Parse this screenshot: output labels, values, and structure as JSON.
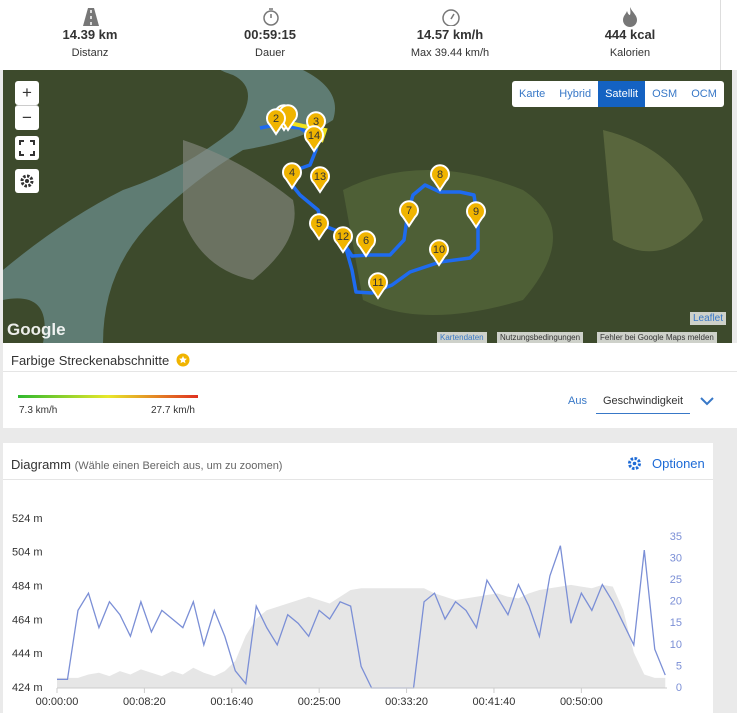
{
  "stats": [
    {
      "value": "14.39 km",
      "label": "Distanz"
    },
    {
      "value": "00:59:15",
      "label": "Dauer"
    },
    {
      "value": "14.57 km/h",
      "label": "Max 39.44 km/h"
    },
    {
      "value": "444 kcal",
      "label": "Kalorien"
    }
  ],
  "map": {
    "layers": [
      "Karte",
      "Hybrid",
      "Satellit",
      "OSM",
      "OCM"
    ],
    "active_layer": "Satellit",
    "zoom_in": "+",
    "zoom_out": "−",
    "markers": [
      "2",
      "3",
      "14",
      "4",
      "13",
      "5",
      "12",
      "6",
      "7",
      "8",
      "9",
      "10",
      "11"
    ],
    "logo": "Google",
    "attribution": [
      "Leaflet",
      "Kartendaten",
      "Nutzungsbedingungen",
      "Fehler bei Google Maps melden"
    ]
  },
  "segments": {
    "title": "Farbige Streckenabschnitte",
    "min": "7.3 km/h",
    "max": "27.7 km/h",
    "off": "Aus",
    "mode": "Geschwindigkeit"
  },
  "chart_data": {
    "type": "line",
    "title": "Diagramm",
    "subtitle": "(Wähle einen Bereich aus, um zu zoomen)",
    "options": "Optionen",
    "x": [
      0,
      60,
      120,
      180,
      240,
      300,
      360,
      420,
      480,
      540,
      600,
      660,
      720,
      780,
      840,
      900,
      960,
      1020,
      1080,
      1140,
      1200,
      1260,
      1320,
      1380,
      1440,
      1500,
      1560,
      1620,
      1680,
      1740,
      1800,
      1860,
      1920,
      1980,
      2040,
      2100,
      2160,
      2220,
      2280,
      2340,
      2400,
      2460,
      2520,
      2580,
      2640,
      2700,
      2760,
      2820,
      2880,
      2940,
      3000,
      3060,
      3120,
      3180,
      3240,
      3300,
      3360,
      3420,
      3480
    ],
    "series": [
      {
        "type": "area",
        "color": "#e6e6e6",
        "values": [
          430,
          430,
          430,
          432,
          433,
          431,
          434,
          432,
          435,
          433,
          431,
          434,
          432,
          436,
          433,
          431,
          434,
          440,
          455,
          465,
          470,
          472,
          474,
          476,
          478,
          476,
          474,
          478,
          482,
          483,
          483,
          483,
          483,
          483,
          483,
          483,
          480,
          478,
          476,
          477,
          478,
          479,
          480,
          478,
          477,
          480,
          482,
          483,
          484,
          485,
          484,
          483,
          485,
          484,
          470,
          445,
          432,
          430,
          430
        ]
      },
      {
        "type": "line",
        "color": "#7b8fd6",
        "axis": "y2",
        "values": [
          2,
          2,
          18,
          22,
          14,
          20,
          17,
          12,
          20,
          13,
          18,
          16,
          14,
          20,
          10,
          18,
          12,
          4,
          1,
          19,
          14,
          10,
          17,
          15,
          12,
          18,
          16,
          20,
          19,
          5,
          0,
          0,
          0,
          0,
          0,
          20,
          22,
          16,
          20,
          18,
          14,
          25,
          21,
          17,
          24,
          19,
          12,
          26,
          33,
          15,
          22,
          18,
          24,
          20,
          15,
          10,
          32,
          9,
          3
        ]
      }
    ],
    "xlim": [
      0,
      3490
    ],
    "ylim": [
      424,
      524
    ],
    "y2lim": [
      0,
      39.2
    ],
    "xticks": [
      {
        "value": 0,
        "label": "00:00:00"
      },
      {
        "value": 500,
        "label": "00:08:20"
      },
      {
        "value": 1000,
        "label": "00:16:40"
      },
      {
        "value": 1500,
        "label": "00:25:00"
      },
      {
        "value": 2000,
        "label": "00:33:20"
      },
      {
        "value": 2500,
        "label": "00:41:40"
      },
      {
        "value": 3000,
        "label": "00:50:00"
      }
    ],
    "yticks": [
      {
        "value": 424,
        "label": "424 m"
      },
      {
        "value": 444,
        "label": "444 m"
      },
      {
        "value": 464,
        "label": "464 m"
      },
      {
        "value": 484,
        "label": "484 m"
      },
      {
        "value": 504,
        "label": "504 m"
      },
      {
        "value": 524,
        "label": "524 m"
      }
    ],
    "y2ticks": [
      0,
      5,
      10,
      15,
      20,
      25,
      30,
      35
    ]
  }
}
